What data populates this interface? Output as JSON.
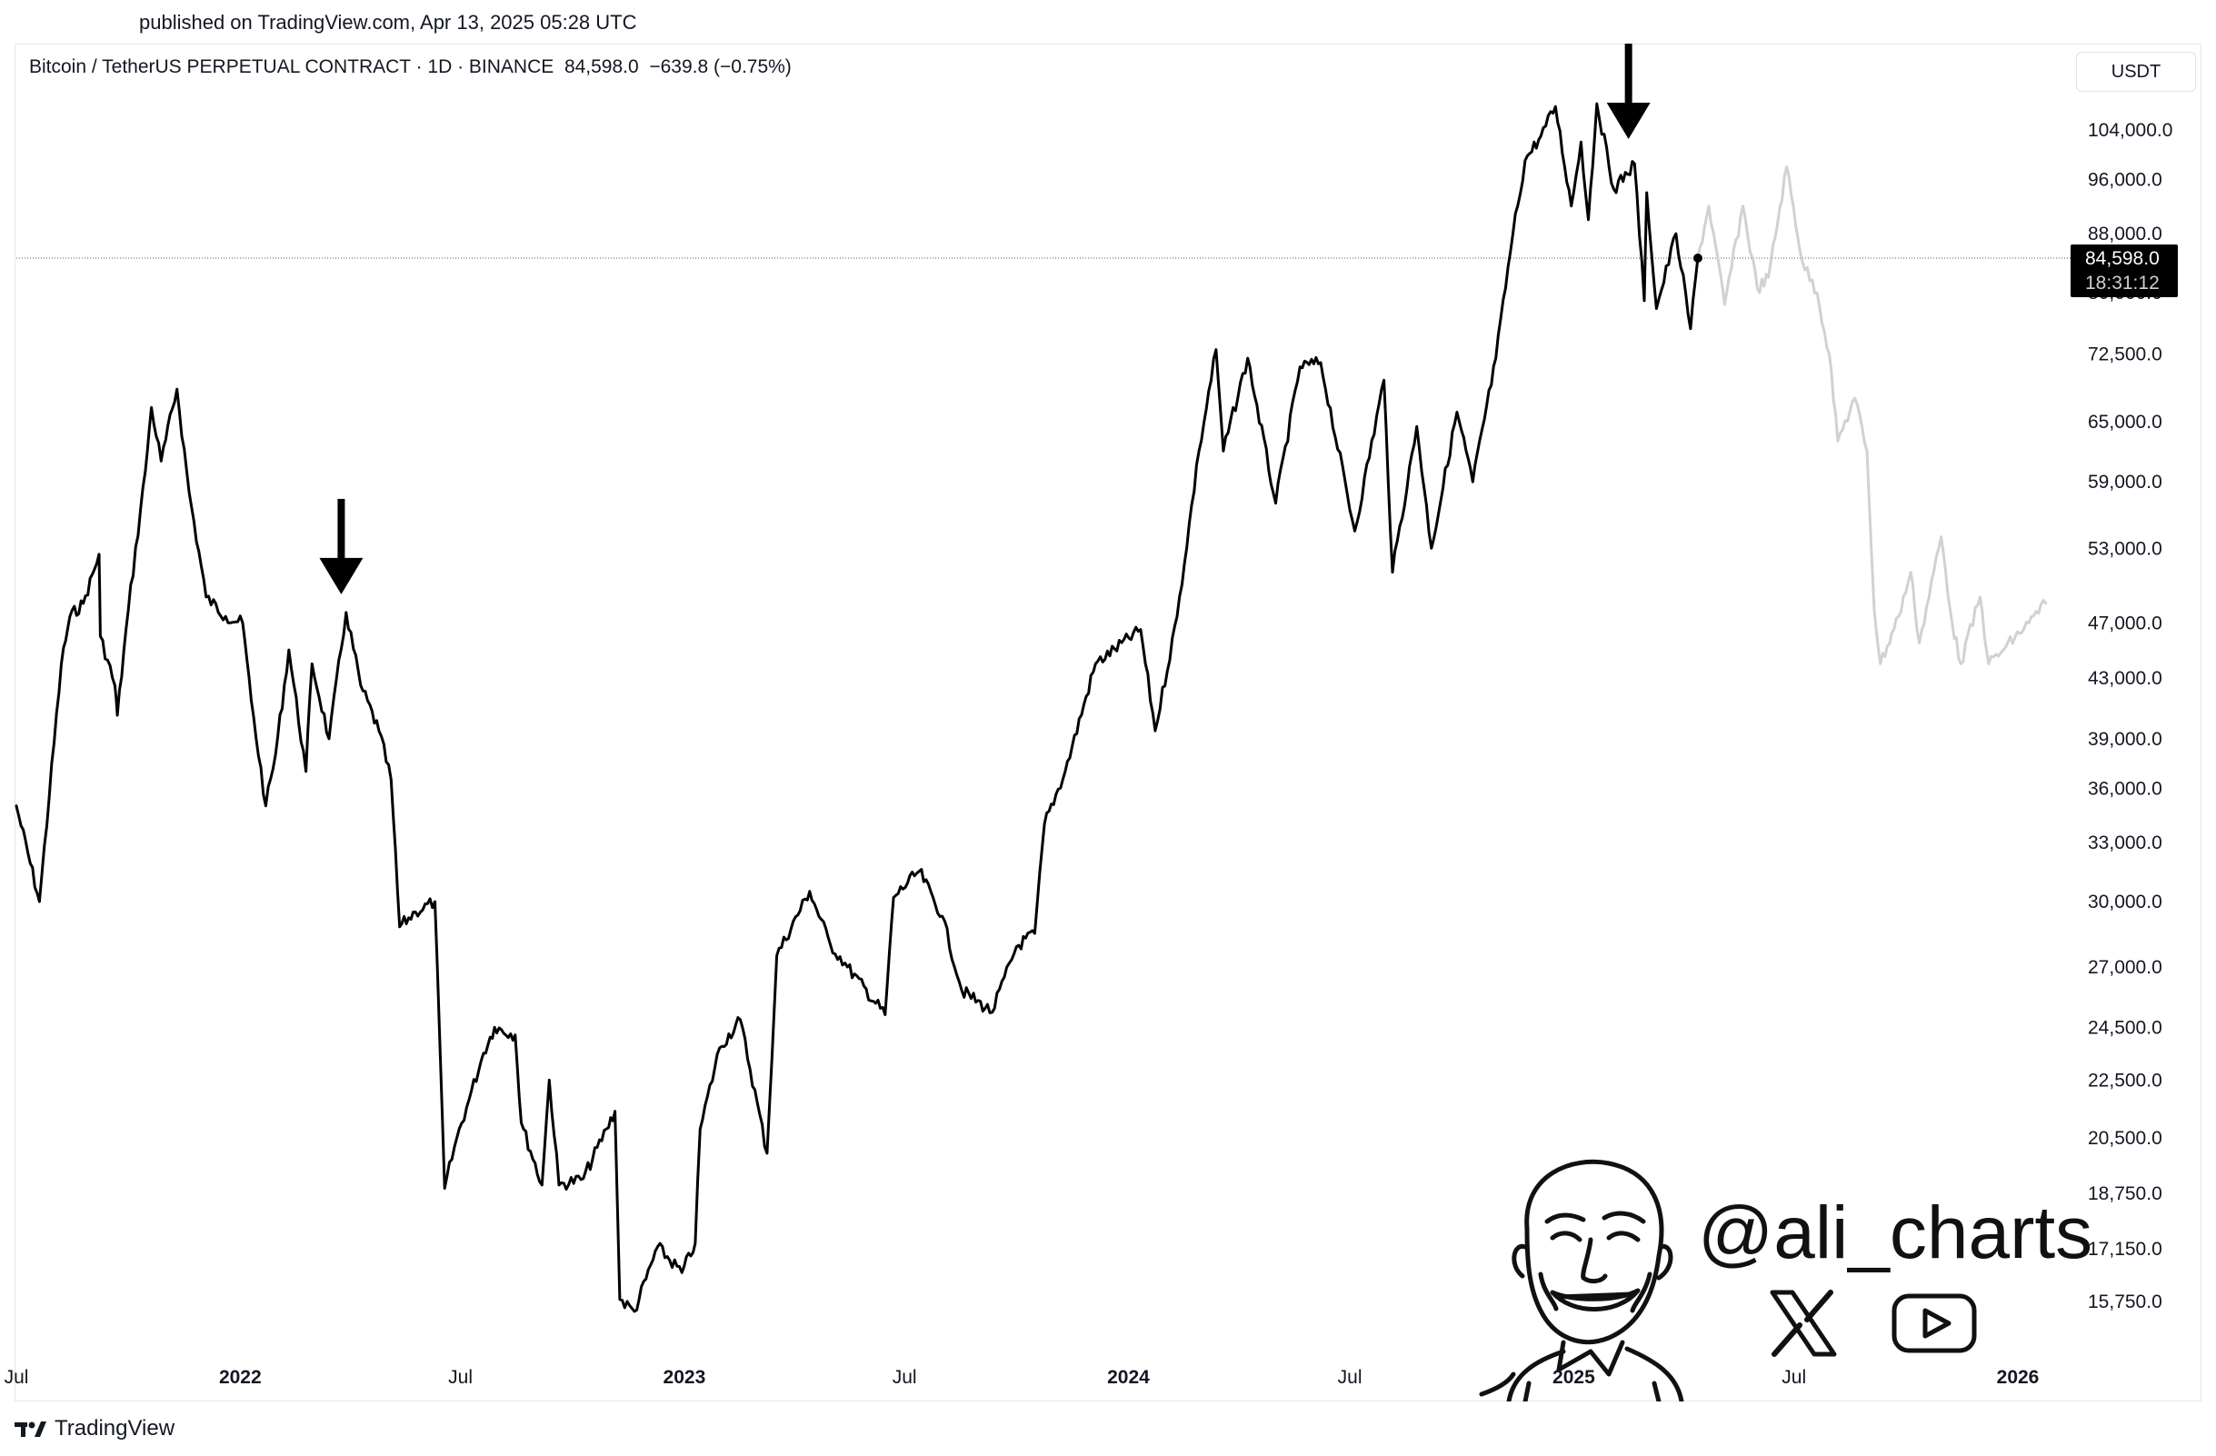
{
  "published": "published on TradingView.com, Apr 13, 2025 05:28 UTC",
  "header": {
    "symbol": "Bitcoin / TetherUS PERPETUAL CONTRACT · 1D · BINANCE",
    "price": "84,598.0",
    "change": "−639.8 (−0.75%)"
  },
  "currency": "USDT",
  "price_label": {
    "price": "84,598.0",
    "countdown": "18:31:12"
  },
  "brand": {
    "name": "TradingView"
  },
  "watermark": {
    "handle": "@ali_charts"
  },
  "icons": {
    "x": "x-logo-icon",
    "youtube": "youtube-play-icon",
    "tradingview": "tradingview-logo-icon",
    "avatar": "caricature-avatar-icon"
  },
  "colors": {
    "line": "#000000",
    "projection": "#d1d1d1",
    "price_tag_bg": "#000000",
    "price_tag_text": "#ffffff"
  },
  "chart_data": {
    "type": "line",
    "title": "",
    "xlabel": "",
    "ylabel": "",
    "y_scale": "log",
    "ylim": [
      14200,
      125000
    ],
    "y_ticks": [
      104000,
      96000,
      88000,
      80000,
      72500,
      65000,
      59000,
      53000,
      47000,
      43000,
      39000,
      36000,
      33000,
      30000,
      27000,
      24500,
      22500,
      20500,
      18750,
      17150,
      15750
    ],
    "y_tick_labels": [
      "104,000.0",
      "96,000.0",
      "88,000.0",
      "80,000.0",
      "72,500.0",
      "65,000.0",
      "59,000.0",
      "53,000.0",
      "47,000.0",
      "43,000.0",
      "39,000.0",
      "36,000.0",
      "33,000.0",
      "30,000.0",
      "27,000.0",
      "24,500.0",
      "22,500.0",
      "20,500.0",
      "18,750.0",
      "17,150.0",
      "15,750.0"
    ],
    "x_ticks": [
      {
        "date": "2021-07-01",
        "label": "Jul",
        "bold": false
      },
      {
        "date": "2022-01-01",
        "label": "2022",
        "bold": true
      },
      {
        "date": "2022-07-01",
        "label": "Jul",
        "bold": false
      },
      {
        "date": "2023-01-01",
        "label": "2023",
        "bold": true
      },
      {
        "date": "2023-07-01",
        "label": "Jul",
        "bold": false
      },
      {
        "date": "2024-01-01",
        "label": "2024",
        "bold": true
      },
      {
        "date": "2024-07-01",
        "label": "Jul",
        "bold": false
      },
      {
        "date": "2025-01-01",
        "label": "2025",
        "bold": true
      },
      {
        "date": "2025-07-01",
        "label": "Jul",
        "bold": false
      },
      {
        "date": "2026-01-01",
        "label": "2026",
        "bold": true
      }
    ],
    "last_price": 84598,
    "arrows": [
      {
        "date": "2022-03-25",
        "value": 48500
      },
      {
        "date": "2025-02-15",
        "value": 101000
      }
    ],
    "series": [
      {
        "style": "solid",
        "points": [
          [
            "2021-07-01",
            35000
          ],
          [
            "2021-07-20",
            30000
          ],
          [
            "2021-08-07",
            44000
          ],
          [
            "2021-08-14",
            47500
          ],
          [
            "2021-08-25",
            48500
          ],
          [
            "2021-09-07",
            52500
          ],
          [
            "2021-09-08",
            46000
          ],
          [
            "2021-09-20",
            42500
          ],
          [
            "2021-09-22",
            40500
          ],
          [
            "2021-10-01",
            48000
          ],
          [
            "2021-10-15",
            60000
          ],
          [
            "2021-10-20",
            66500
          ],
          [
            "2021-10-28",
            61000
          ],
          [
            "2021-11-10",
            68500
          ],
          [
            "2021-11-20",
            58000
          ],
          [
            "2021-12-04",
            49000
          ],
          [
            "2021-12-20",
            47500
          ],
          [
            "2022-01-03",
            47000
          ],
          [
            "2022-01-10",
            41500
          ],
          [
            "2022-01-22",
            35000
          ],
          [
            "2022-01-30",
            38000
          ],
          [
            "2022-02-10",
            45000
          ],
          [
            "2022-02-24",
            37000
          ],
          [
            "2022-03-01",
            44000
          ],
          [
            "2022-03-15",
            39000
          ],
          [
            "2022-03-29",
            47800
          ],
          [
            "2022-04-10",
            42500
          ],
          [
            "2022-04-25",
            39500
          ],
          [
            "2022-05-05",
            36500
          ],
          [
            "2022-05-12",
            28800
          ],
          [
            "2022-05-25",
            29500
          ],
          [
            "2022-06-10",
            30000
          ],
          [
            "2022-06-18",
            18900
          ],
          [
            "2022-06-28",
            20500
          ],
          [
            "2022-07-08",
            21800
          ],
          [
            "2022-07-20",
            23500
          ],
          [
            "2022-07-29",
            24500
          ],
          [
            "2022-08-15",
            24200
          ],
          [
            "2022-08-20",
            21000
          ],
          [
            "2022-09-06",
            19000
          ],
          [
            "2022-09-12",
            22500
          ],
          [
            "2022-09-20",
            19000
          ],
          [
            "2022-10-10",
            19200
          ],
          [
            "2022-10-29",
            20800
          ],
          [
            "2022-11-05",
            21400
          ],
          [
            "2022-11-09",
            15800
          ],
          [
            "2022-11-21",
            15500
          ],
          [
            "2022-12-10",
            17200
          ],
          [
            "2022-12-30",
            16500
          ],
          [
            "2023-01-10",
            17300
          ],
          [
            "2023-01-14",
            20800
          ],
          [
            "2023-01-30",
            23700
          ],
          [
            "2023-02-16",
            24800
          ],
          [
            "2023-03-10",
            20000
          ],
          [
            "2023-03-18",
            27500
          ],
          [
            "2023-04-14",
            30500
          ],
          [
            "2023-05-01",
            28000
          ],
          [
            "2023-05-15",
            27000
          ],
          [
            "2023-06-15",
            25000
          ],
          [
            "2023-06-22",
            30200
          ],
          [
            "2023-07-13",
            31500
          ],
          [
            "2023-08-01",
            29300
          ],
          [
            "2023-08-17",
            26000
          ],
          [
            "2023-09-11",
            25100
          ],
          [
            "2023-10-01",
            27900
          ],
          [
            "2023-10-16",
            28500
          ],
          [
            "2023-10-24",
            34000
          ],
          [
            "2023-11-10",
            37000
          ],
          [
            "2023-12-05",
            44000
          ],
          [
            "2024-01-11",
            46500
          ],
          [
            "2024-01-23",
            39500
          ],
          [
            "2024-02-10",
            47500
          ],
          [
            "2024-02-28",
            62000
          ],
          [
            "2024-03-13",
            73000
          ],
          [
            "2024-03-19",
            62000
          ],
          [
            "2024-04-08",
            72000
          ],
          [
            "2024-05-01",
            57000
          ],
          [
            "2024-05-21",
            71000
          ],
          [
            "2024-06-07",
            71500
          ],
          [
            "2024-07-05",
            54500
          ],
          [
            "2024-07-29",
            69500
          ],
          [
            "2024-08-05",
            51000
          ],
          [
            "2024-08-25",
            64500
          ],
          [
            "2024-09-06",
            53000
          ],
          [
            "2024-09-27",
            66000
          ],
          [
            "2024-10-10",
            59000
          ],
          [
            "2024-10-29",
            72000
          ],
          [
            "2024-11-12",
            88000
          ],
          [
            "2024-11-22",
            99000
          ],
          [
            "2024-12-05",
            103000
          ],
          [
            "2024-12-17",
            108000
          ],
          [
            "2024-12-30",
            92000
          ],
          [
            "2025-01-07",
            102000
          ],
          [
            "2025-01-13",
            90000
          ],
          [
            "2025-01-20",
            108500
          ],
          [
            "2025-02-03",
            94500
          ],
          [
            "2025-02-20",
            98500
          ],
          [
            "2025-02-28",
            79000
          ],
          [
            "2025-03-02",
            94000
          ],
          [
            "2025-03-10",
            78000
          ],
          [
            "2025-03-26",
            88000
          ],
          [
            "2025-04-07",
            75500
          ],
          [
            "2025-04-13",
            84598
          ]
        ]
      },
      {
        "style": "projection",
        "points": [
          [
            "2025-04-13",
            84598
          ],
          [
            "2025-04-22",
            92000
          ],
          [
            "2025-05-05",
            78500
          ],
          [
            "2025-05-20",
            92000
          ],
          [
            "2025-06-01",
            80500
          ],
          [
            "2025-06-10",
            82000
          ],
          [
            "2025-06-25",
            98000
          ],
          [
            "2025-07-08",
            84000
          ],
          [
            "2025-07-20",
            80000
          ],
          [
            "2025-07-30",
            72500
          ],
          [
            "2025-08-06",
            63000
          ],
          [
            "2025-08-20",
            67500
          ],
          [
            "2025-08-30",
            62000
          ],
          [
            "2025-09-05",
            48000
          ],
          [
            "2025-09-10",
            44000
          ],
          [
            "2025-09-25",
            47500
          ],
          [
            "2025-10-05",
            51000
          ],
          [
            "2025-10-12",
            45500
          ],
          [
            "2025-10-30",
            54000
          ],
          [
            "2025-11-08",
            47000
          ],
          [
            "2025-11-15",
            44000
          ],
          [
            "2025-12-01",
            49000
          ],
          [
            "2025-12-08",
            44000
          ],
          [
            "2025-12-20",
            45000
          ],
          [
            "2026-01-10",
            47000
          ],
          [
            "2026-01-24",
            48500
          ]
        ]
      }
    ]
  }
}
